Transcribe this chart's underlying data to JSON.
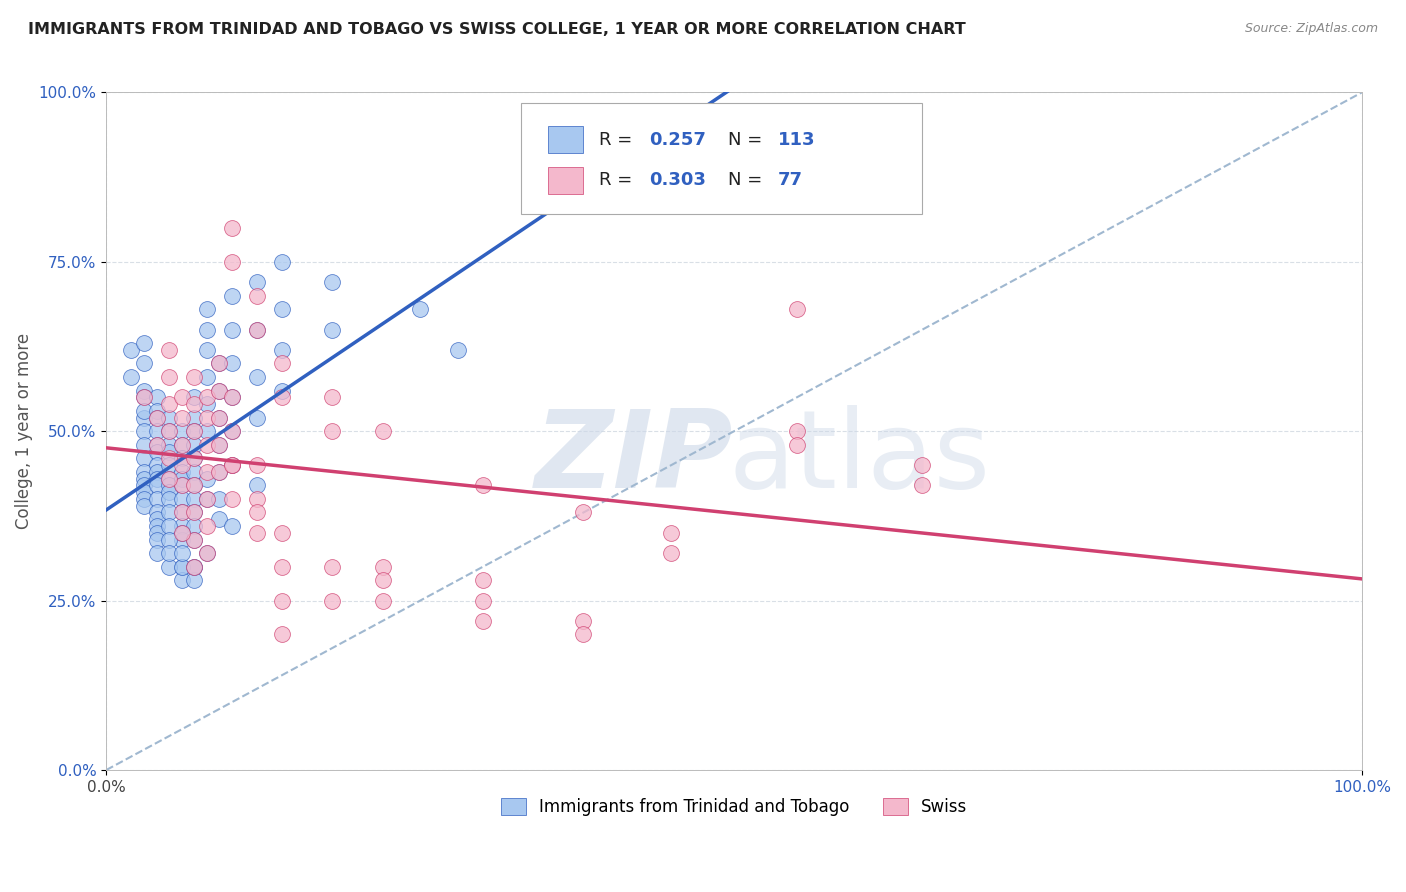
{
  "title": "IMMIGRANTS FROM TRINIDAD AND TOBAGO VS SWISS COLLEGE, 1 YEAR OR MORE CORRELATION CHART",
  "source": "Source: ZipAtlas.com",
  "ylabel": "College, 1 year or more",
  "legend_label_blue": "Immigrants from Trinidad and Tobago",
  "legend_label_pink": "Swiss",
  "r_blue": 0.257,
  "n_blue": 113,
  "r_pink": 0.303,
  "n_pink": 77,
  "xlim": [
    0,
    1
  ],
  "ylim": [
    0,
    1
  ],
  "ytick_values": [
    0.0,
    0.25,
    0.5,
    0.75,
    1.0
  ],
  "color_blue": "#a8c8f0",
  "color_pink": "#f4b8cc",
  "line_color_blue": "#3060c0",
  "line_color_pink": "#d04070",
  "line_color_dashed": "#a0b8d0",
  "watermark_color": "#ccd8e8",
  "background_color": "#ffffff",
  "blue_points_x": [
    0.02,
    0.02,
    0.03,
    0.03,
    0.03,
    0.03,
    0.03,
    0.03,
    0.03,
    0.03,
    0.03,
    0.03,
    0.03,
    0.03,
    0.03,
    0.03,
    0.03,
    0.04,
    0.04,
    0.04,
    0.04,
    0.04,
    0.04,
    0.04,
    0.04,
    0.04,
    0.04,
    0.04,
    0.04,
    0.04,
    0.04,
    0.05,
    0.05,
    0.05,
    0.05,
    0.05,
    0.05,
    0.05,
    0.05,
    0.05,
    0.06,
    0.06,
    0.06,
    0.06,
    0.06,
    0.06,
    0.06,
    0.06,
    0.06,
    0.06,
    0.07,
    0.07,
    0.07,
    0.07,
    0.07,
    0.07,
    0.07,
    0.07,
    0.07,
    0.07,
    0.08,
    0.08,
    0.08,
    0.08,
    0.08,
    0.08,
    0.08,
    0.09,
    0.09,
    0.09,
    0.09,
    0.09,
    0.1,
    0.1,
    0.1,
    0.1,
    0.1,
    0.12,
    0.12,
    0.12,
    0.12,
    0.14,
    0.14,
    0.14,
    0.14,
    0.18,
    0.18,
    0.25,
    0.28,
    0.06,
    0.06,
    0.07,
    0.07,
    0.06,
    0.05,
    0.04,
    0.04,
    0.05,
    0.05,
    0.04,
    0.05,
    0.05,
    0.06,
    0.06,
    0.07,
    0.07,
    0.08,
    0.08,
    0.09,
    0.09,
    0.1,
    0.1,
    0.12
  ],
  "blue_points_y": [
    0.58,
    0.62,
    0.63,
    0.6,
    0.56,
    0.52,
    0.55,
    0.53,
    0.5,
    0.48,
    0.46,
    0.44,
    0.43,
    0.42,
    0.41,
    0.4,
    0.39,
    0.55,
    0.53,
    0.52,
    0.5,
    0.48,
    0.47,
    0.45,
    0.44,
    0.43,
    0.42,
    0.4,
    0.38,
    0.37,
    0.36,
    0.52,
    0.5,
    0.48,
    0.47,
    0.45,
    0.43,
    0.42,
    0.41,
    0.4,
    0.5,
    0.48,
    0.46,
    0.44,
    0.43,
    0.42,
    0.4,
    0.38,
    0.36,
    0.34,
    0.55,
    0.52,
    0.5,
    0.48,
    0.46,
    0.44,
    0.42,
    0.4,
    0.38,
    0.36,
    0.68,
    0.65,
    0.62,
    0.58,
    0.54,
    0.5,
    0.43,
    0.6,
    0.56,
    0.52,
    0.48,
    0.44,
    0.7,
    0.65,
    0.6,
    0.55,
    0.45,
    0.72,
    0.65,
    0.58,
    0.52,
    0.75,
    0.68,
    0.62,
    0.56,
    0.72,
    0.65,
    0.68,
    0.62,
    0.3,
    0.28,
    0.3,
    0.28,
    0.35,
    0.38,
    0.35,
    0.34,
    0.36,
    0.34,
    0.32,
    0.3,
    0.32,
    0.3,
    0.32,
    0.3,
    0.34,
    0.32,
    0.4,
    0.37,
    0.4,
    0.36,
    0.5,
    0.42
  ],
  "pink_points_x": [
    0.03,
    0.04,
    0.04,
    0.05,
    0.05,
    0.05,
    0.05,
    0.05,
    0.06,
    0.06,
    0.06,
    0.06,
    0.06,
    0.06,
    0.07,
    0.07,
    0.07,
    0.07,
    0.07,
    0.07,
    0.07,
    0.08,
    0.08,
    0.08,
    0.08,
    0.08,
    0.08,
    0.09,
    0.09,
    0.09,
    0.09,
    0.1,
    0.1,
    0.1,
    0.1,
    0.1,
    0.12,
    0.12,
    0.12,
    0.12,
    0.14,
    0.14,
    0.14,
    0.14,
    0.18,
    0.18,
    0.18,
    0.22,
    0.22,
    0.22,
    0.3,
    0.3,
    0.3,
    0.38,
    0.38,
    0.45,
    0.55,
    0.55,
    0.65,
    0.05,
    0.06,
    0.07,
    0.08,
    0.09,
    0.1,
    0.12,
    0.14,
    0.14,
    0.18,
    0.22,
    0.3,
    0.38,
    0.45,
    0.55,
    0.65,
    0.1,
    0.12
  ],
  "pink_points_y": [
    0.55,
    0.52,
    0.48,
    0.62,
    0.58,
    0.54,
    0.5,
    0.46,
    0.55,
    0.52,
    0.48,
    0.45,
    0.42,
    0.38,
    0.58,
    0.54,
    0.5,
    0.46,
    0.42,
    0.38,
    0.34,
    0.55,
    0.52,
    0.48,
    0.44,
    0.4,
    0.36,
    0.6,
    0.56,
    0.52,
    0.48,
    0.8,
    0.75,
    0.55,
    0.5,
    0.45,
    0.7,
    0.65,
    0.45,
    0.4,
    0.6,
    0.55,
    0.35,
    0.3,
    0.55,
    0.5,
    0.3,
    0.5,
    0.3,
    0.28,
    0.42,
    0.28,
    0.25,
    0.38,
    0.22,
    0.35,
    0.68,
    0.5,
    0.45,
    0.43,
    0.35,
    0.3,
    0.32,
    0.44,
    0.4,
    0.35,
    0.25,
    0.2,
    0.25,
    0.25,
    0.22,
    0.2,
    0.32,
    0.48,
    0.42,
    0.45,
    0.38
  ]
}
